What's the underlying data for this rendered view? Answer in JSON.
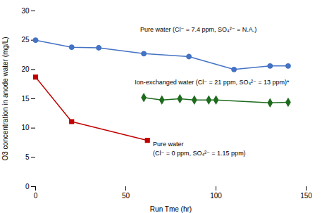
{
  "chart_data": {
    "type": "line",
    "xlabel": "Run Tme (hr)",
    "ylabel": "O3 concentration in anode water (mg/L)",
    "xlim": [
      0,
      150
    ],
    "ylim": [
      0,
      30
    ],
    "xticks": [
      0,
      50,
      100,
      150
    ],
    "yticks": [
      0,
      5,
      10,
      15,
      20,
      25,
      30
    ],
    "grid": false,
    "series": [
      {
        "color": "#4472C4",
        "marker": "circle",
        "x": [
          0,
          20,
          35,
          60,
          85,
          110,
          130,
          140
        ],
        "values": [
          25.0,
          23.8,
          23.7,
          22.7,
          22.2,
          20.0,
          20.6,
          20.6
        ]
      },
      {
        "color": "#C00000",
        "marker": "square",
        "x": [
          0,
          20,
          62
        ],
        "values": [
          18.7,
          11.1,
          7.9
        ]
      },
      {
        "color": "#1E6B1E",
        "marker": "diamond",
        "x": [
          60,
          70,
          80,
          88,
          96,
          100,
          130,
          140
        ],
        "values": [
          15.2,
          14.8,
          15.0,
          14.8,
          14.8,
          14.8,
          14.3,
          14.4
        ]
      }
    ],
    "annotations": [
      {
        "text": "Pure water (Cl⁻ = 7.4 ppm, SO₄²⁻ = N.A.)",
        "x": 58,
        "y": 26.8
      },
      {
        "text": "Ion-exchanged water (Cl⁻ = 21 ppm, SO₄²⁻ = 13 ppm)*",
        "x": 55,
        "y": 17.8
      },
      {
        "text": "Pure water",
        "x": 65,
        "y": 7.2
      },
      {
        "text": "(Cl⁻ = 0 ppm, SO₄²⁻ = 1.15 ppm)",
        "x": 65,
        "y": 5.7
      }
    ]
  }
}
